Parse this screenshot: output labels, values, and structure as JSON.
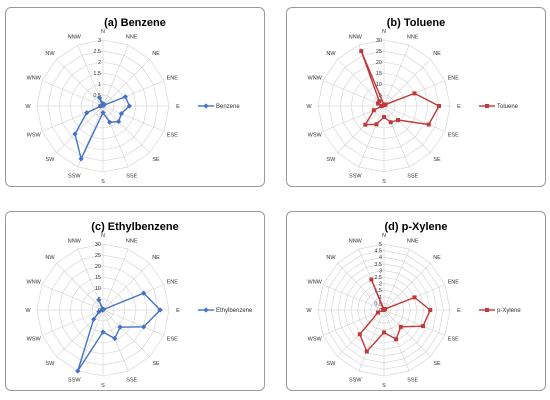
{
  "chart_data": [
    {
      "type": "radar",
      "title": "(a) Benzene",
      "directions": [
        "N",
        "NNE",
        "NE",
        "ENE",
        "E",
        "ESE",
        "SE",
        "SSE",
        "S",
        "SSW",
        "SW",
        "WSW",
        "W",
        "WNW",
        "NW",
        "NNW"
      ],
      "tick_labels": [
        "0",
        "0.5",
        "1",
        "1.5",
        "2",
        "2.5",
        "3"
      ],
      "rmax": 3,
      "series": [
        {
          "name": "Benzene",
          "color": "#4472C4",
          "marker": "diamond",
          "values": [
            0.1,
            0.1,
            0.05,
            1.1,
            1.2,
            0.9,
            1.0,
            0.8,
            0.3,
            2.6,
            1.8,
            0.8,
            0.1,
            0.05,
            0.05,
            0.4
          ]
        }
      ],
      "legend": "right"
    },
    {
      "type": "radar",
      "title": "(b) Toluene",
      "directions": [
        "N",
        "NNE",
        "NE",
        "ENE",
        "E",
        "ESE",
        "SE",
        "SSE",
        "S",
        "SSW",
        "SW",
        "WSW",
        "W",
        "WNW",
        "NW",
        "NNW"
      ],
      "tick_labels": [
        "0",
        "5",
        "10",
        "15",
        "20",
        "25",
        "30"
      ],
      "rmax": 30,
      "series": [
        {
          "name": "Toluene",
          "color": "#C0393B",
          "marker": "square",
          "values": [
            0.5,
            0.5,
            1,
            15,
            25,
            22,
            9,
            8,
            5,
            9,
            12,
            5,
            1,
            3,
            3,
            27
          ]
        }
      ],
      "legend": "right"
    },
    {
      "type": "radar",
      "title": "(c) Ethylbenzene",
      "directions": [
        "N",
        "NNE",
        "NE",
        "ENE",
        "E",
        "ESE",
        "SE",
        "SSE",
        "S",
        "SSW",
        "SW",
        "WSW",
        "W",
        "WNW",
        "NW",
        "NNW"
      ],
      "tick_labels": [
        "0",
        "5",
        "10",
        "15",
        "20",
        "25",
        "30"
      ],
      "rmax": 30,
      "series": [
        {
          "name": "Ethylbenzene",
          "color": "#4472C4",
          "marker": "diamond",
          "values": [
            0.3,
            0.3,
            0.3,
            20,
            26,
            20,
            11,
            14,
            10,
            30,
            6,
            2,
            0.3,
            0.3,
            0.3,
            5
          ]
        }
      ],
      "legend": "right"
    },
    {
      "type": "radar",
      "title": "(d) p-Xylene",
      "directions": [
        "N",
        "NNE",
        "NE",
        "ENE",
        "E",
        "ESE",
        "SE",
        "SSE",
        "S",
        "SSW",
        "SW",
        "WSW",
        "W",
        "WNW",
        "NW",
        "NNW"
      ],
      "tick_labels": [
        "0",
        "0.5",
        "1",
        "1.5",
        "2",
        "2.5",
        "3",
        "3.5",
        "4",
        "4.5",
        "5"
      ],
      "rmax": 5,
      "series": [
        {
          "name": "p-Xylene",
          "color": "#C0393B",
          "marker": "square",
          "values": [
            0.05,
            0.05,
            0.1,
            2.5,
            3.5,
            3.2,
            1.8,
            2.4,
            1.7,
            3.4,
            2.6,
            0.5,
            0.05,
            0.05,
            0.05,
            2.5
          ]
        }
      ],
      "legend": "right"
    }
  ]
}
